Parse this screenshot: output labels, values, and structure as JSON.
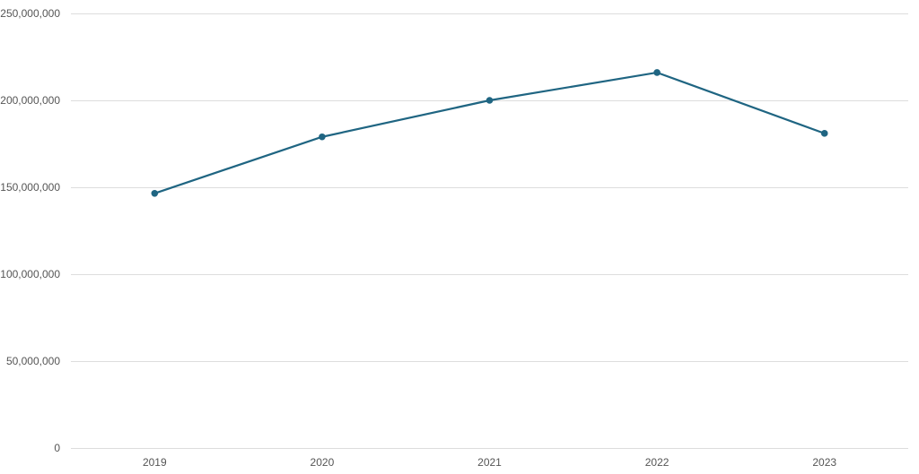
{
  "chart_data": {
    "type": "line",
    "x": [
      "2019",
      "2020",
      "2021",
      "2022",
      "2023"
    ],
    "series": [
      {
        "values": [
          146500000,
          179000000,
          200000000,
          216000000,
          181000000
        ],
        "color": "#1f6582"
      }
    ],
    "ylim": [
      0,
      250000000
    ],
    "yticks": [
      0,
      50000000,
      100000000,
      150000000,
      200000000,
      250000000
    ],
    "ytick_labels": [
      "0",
      "50,000,000",
      "100,000,000",
      "150,000,000",
      "200,000,000",
      "250,000,000"
    ],
    "grid": true,
    "legend": "none"
  }
}
